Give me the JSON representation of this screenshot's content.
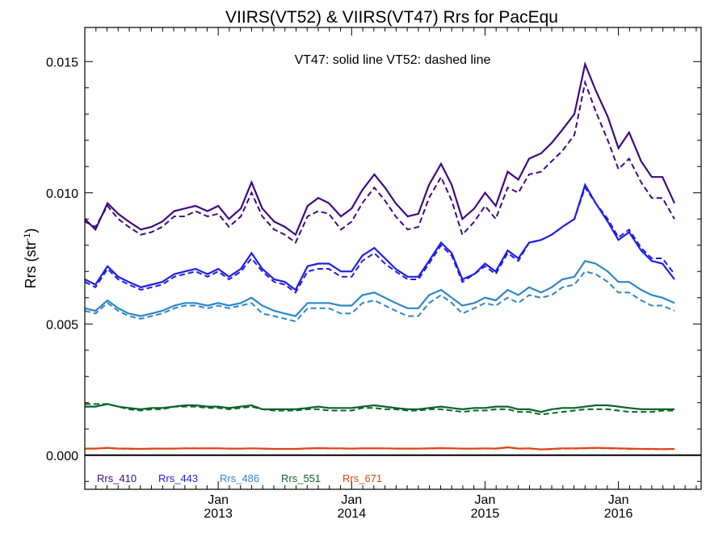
{
  "chart_data": {
    "type": "line",
    "title": "VIIRS(VT52) & VIIRS(VT47)  Rrs for PacEqu",
    "annotation": "VT47: solid line   VT52: dashed line",
    "ylabel_main": "Rrs (str",
    "ylabel_sup": "-1",
    "ylabel_close": ")",
    "xlabel": "",
    "ylim": [
      -0.0013,
      0.0163
    ],
    "xlim": [
      2012.0,
      2016.62
    ],
    "yticks": [
      0.0,
      0.005,
      0.01,
      0.015
    ],
    "ytick_labels": [
      "0.000",
      "0.005",
      "0.010",
      "0.015"
    ],
    "xticks": [
      {
        "x": 2013.0,
        "month": "Jan",
        "year": "2013"
      },
      {
        "x": 2014.0,
        "month": "Jan",
        "year": "2014"
      },
      {
        "x": 2015.0,
        "month": "Jan",
        "year": "2015"
      },
      {
        "x": 2016.0,
        "month": "Jan",
        "year": "2016"
      }
    ],
    "zero_line": 0.0,
    "grid": false,
    "legend_position": "bottom-left",
    "line_styles": {
      "VT47": "solid",
      "VT52": "dashed"
    },
    "series": [
      {
        "name": "Rrs_410",
        "color": "#3d0a82",
        "x": [
          2012.0,
          2012.08,
          2012.17,
          2012.25,
          2012.33,
          2012.42,
          2012.5,
          2012.58,
          2012.67,
          2012.75,
          2012.83,
          2012.92,
          2013.0,
          2013.08,
          2013.17,
          2013.25,
          2013.33,
          2013.42,
          2013.5,
          2013.58,
          2013.67,
          2013.75,
          2013.83,
          2013.92,
          2014.0,
          2014.08,
          2014.17,
          2014.25,
          2014.33,
          2014.42,
          2014.5,
          2014.58,
          2014.67,
          2014.75,
          2014.83,
          2014.92,
          2015.0,
          2015.08,
          2015.17,
          2015.25,
          2015.33,
          2015.42,
          2015.5,
          2015.58,
          2015.67,
          2015.75,
          2015.83,
          2015.92,
          2016.0,
          2016.08,
          2016.17,
          2016.25,
          2016.33,
          2016.42,
          2016.5,
          2016.58
        ],
        "vt47": [
          0.009,
          0.0086,
          0.0096,
          0.0092,
          0.0089,
          0.0086,
          0.0087,
          0.0089,
          0.0093,
          0.0094,
          0.0095,
          0.0093,
          0.0095,
          0.009,
          0.0094,
          0.0104,
          0.0094,
          0.0089,
          0.0087,
          0.0084,
          0.0095,
          0.0098,
          0.0096,
          0.0091,
          0.0094,
          0.0101,
          0.0107,
          0.0102,
          0.0096,
          0.0091,
          0.0092,
          0.0103,
          0.0111,
          0.0103,
          0.009,
          0.0094,
          0.01,
          0.0095,
          0.0108,
          0.0105,
          0.0113,
          0.0115,
          0.0119,
          0.0124,
          0.013,
          0.0149,
          0.0139,
          0.0129,
          0.0117,
          0.0123,
          0.0112,
          0.0106,
          0.0106,
          0.0096
        ],
        "vt52": [
          0.0089,
          0.0087,
          0.0095,
          0.009,
          0.0087,
          0.0084,
          0.0085,
          0.0087,
          0.0091,
          0.0091,
          0.0093,
          0.0091,
          0.0092,
          0.0087,
          0.0091,
          0.01,
          0.0091,
          0.0086,
          0.0084,
          0.0081,
          0.0091,
          0.0093,
          0.0092,
          0.0086,
          0.0089,
          0.0096,
          0.0102,
          0.0097,
          0.0091,
          0.0086,
          0.0087,
          0.0098,
          0.0106,
          0.0097,
          0.0084,
          0.0089,
          0.0095,
          0.009,
          0.0102,
          0.01,
          0.0107,
          0.0108,
          0.0112,
          0.0116,
          0.0122,
          0.0142,
          0.0131,
          0.012,
          0.0109,
          0.0113,
          0.0104,
          0.0098,
          0.0098,
          0.009
        ]
      },
      {
        "name": "Rrs_443",
        "color": "#1e1ee6",
        "x": [
          2012.0,
          2012.08,
          2012.17,
          2012.25,
          2012.33,
          2012.42,
          2012.5,
          2012.58,
          2012.67,
          2012.75,
          2012.83,
          2012.92,
          2013.0,
          2013.08,
          2013.17,
          2013.25,
          2013.33,
          2013.42,
          2013.5,
          2013.58,
          2013.67,
          2013.75,
          2013.83,
          2013.92,
          2014.0,
          2014.08,
          2014.17,
          2014.25,
          2014.33,
          2014.42,
          2014.5,
          2014.58,
          2014.67,
          2014.75,
          2014.83,
          2014.92,
          2015.0,
          2015.08,
          2015.17,
          2015.25,
          2015.33,
          2015.42,
          2015.5,
          2015.58,
          2015.67,
          2015.75,
          2015.83,
          2015.92,
          2016.0,
          2016.08,
          2016.17,
          2016.25,
          2016.33,
          2016.42,
          2016.5,
          2016.58
        ],
        "vt47": [
          0.0067,
          0.0065,
          0.0072,
          0.0068,
          0.0066,
          0.0064,
          0.0065,
          0.0066,
          0.0069,
          0.007,
          0.0071,
          0.0069,
          0.0071,
          0.0068,
          0.0071,
          0.0077,
          0.0071,
          0.0067,
          0.0066,
          0.0063,
          0.0072,
          0.0073,
          0.0073,
          0.007,
          0.007,
          0.0076,
          0.0079,
          0.0075,
          0.0071,
          0.0068,
          0.0068,
          0.0074,
          0.0081,
          0.0077,
          0.0067,
          0.0069,
          0.0073,
          0.007,
          0.0078,
          0.0075,
          0.0081,
          0.0082,
          0.0084,
          0.0087,
          0.009,
          0.0103,
          0.0096,
          0.0089,
          0.0082,
          0.0085,
          0.0078,
          0.0074,
          0.0073,
          0.0067
        ],
        "vt52": [
          0.0066,
          0.0064,
          0.0071,
          0.0067,
          0.0065,
          0.0063,
          0.0064,
          0.0065,
          0.0068,
          0.0069,
          0.007,
          0.0068,
          0.007,
          0.0067,
          0.007,
          0.0075,
          0.007,
          0.0066,
          0.0065,
          0.0062,
          0.007,
          0.0071,
          0.0071,
          0.0068,
          0.0068,
          0.0074,
          0.0077,
          0.0073,
          0.007,
          0.0067,
          0.0067,
          0.0073,
          0.008,
          0.0076,
          0.0066,
          0.0069,
          0.0072,
          0.0069,
          0.0077,
          0.0074,
          0.0081,
          0.0082,
          0.0084,
          0.0087,
          0.009,
          0.0102,
          0.0096,
          0.009,
          0.0083,
          0.0086,
          0.0079,
          0.0075,
          0.0075,
          0.0069
        ]
      },
      {
        "name": "Rrs_486",
        "color": "#2e86c8",
        "x": [
          2012.0,
          2012.08,
          2012.17,
          2012.25,
          2012.33,
          2012.42,
          2012.5,
          2012.58,
          2012.67,
          2012.75,
          2012.83,
          2012.92,
          2013.0,
          2013.08,
          2013.17,
          2013.25,
          2013.33,
          2013.42,
          2013.5,
          2013.58,
          2013.67,
          2013.75,
          2013.83,
          2013.92,
          2014.0,
          2014.08,
          2014.17,
          2014.25,
          2014.33,
          2014.42,
          2014.5,
          2014.58,
          2014.67,
          2014.75,
          2014.83,
          2014.92,
          2015.0,
          2015.08,
          2015.17,
          2015.25,
          2015.33,
          2015.42,
          2015.5,
          2015.58,
          2015.67,
          2015.75,
          2015.83,
          2015.92,
          2016.0,
          2016.08,
          2016.17,
          2016.25,
          2016.33,
          2016.42,
          2016.5,
          2016.58
        ],
        "vt47": [
          0.0056,
          0.0055,
          0.0059,
          0.0056,
          0.0054,
          0.0053,
          0.0054,
          0.0055,
          0.0057,
          0.0058,
          0.0058,
          0.0057,
          0.0058,
          0.0057,
          0.0058,
          0.006,
          0.0057,
          0.0055,
          0.0054,
          0.0053,
          0.0058,
          0.0058,
          0.0058,
          0.0057,
          0.0057,
          0.0061,
          0.0062,
          0.006,
          0.0058,
          0.0056,
          0.0056,
          0.0061,
          0.0063,
          0.006,
          0.0057,
          0.0058,
          0.006,
          0.0059,
          0.0063,
          0.0061,
          0.0064,
          0.0062,
          0.0064,
          0.0067,
          0.0068,
          0.0074,
          0.0073,
          0.007,
          0.0066,
          0.0066,
          0.0063,
          0.0061,
          0.006,
          0.0058
        ],
        "vt52": [
          0.0055,
          0.0054,
          0.0058,
          0.0055,
          0.0053,
          0.0052,
          0.0053,
          0.0054,
          0.0056,
          0.0057,
          0.0057,
          0.0056,
          0.0057,
          0.0056,
          0.0057,
          0.0058,
          0.0054,
          0.0053,
          0.0052,
          0.0051,
          0.0056,
          0.0056,
          0.0056,
          0.0054,
          0.0054,
          0.0058,
          0.0059,
          0.0057,
          0.0055,
          0.0053,
          0.0053,
          0.0058,
          0.0061,
          0.0058,
          0.0054,
          0.0056,
          0.0058,
          0.0057,
          0.006,
          0.0058,
          0.0061,
          0.006,
          0.0061,
          0.0064,
          0.0065,
          0.007,
          0.0069,
          0.0066,
          0.0062,
          0.0062,
          0.0059,
          0.0057,
          0.0057,
          0.0055
        ]
      },
      {
        "name": "Rrs_551",
        "color": "#0a6428",
        "x": [
          2012.0,
          2012.08,
          2012.17,
          2012.25,
          2012.33,
          2012.42,
          2012.5,
          2012.58,
          2012.67,
          2012.75,
          2012.83,
          2012.92,
          2013.0,
          2013.08,
          2013.17,
          2013.25,
          2013.33,
          2013.42,
          2013.5,
          2013.58,
          2013.67,
          2013.75,
          2013.83,
          2013.92,
          2014.0,
          2014.08,
          2014.17,
          2014.25,
          2014.33,
          2014.42,
          2014.5,
          2014.58,
          2014.67,
          2014.75,
          2014.83,
          2014.92,
          2015.0,
          2015.08,
          2015.17,
          2015.25,
          2015.33,
          2015.42,
          2015.5,
          2015.58,
          2015.67,
          2015.75,
          2015.83,
          2015.92,
          2016.0,
          2016.08,
          2016.17,
          2016.25,
          2016.33,
          2016.42,
          2016.5,
          2016.58
        ],
        "vt47": [
          0.00185,
          0.00185,
          0.00195,
          0.00185,
          0.0018,
          0.00175,
          0.0018,
          0.0018,
          0.00185,
          0.0019,
          0.0019,
          0.00185,
          0.00185,
          0.0018,
          0.00185,
          0.0019,
          0.00175,
          0.00175,
          0.00175,
          0.00175,
          0.0018,
          0.00185,
          0.0018,
          0.0018,
          0.0018,
          0.00185,
          0.0019,
          0.00185,
          0.0018,
          0.00175,
          0.00175,
          0.0018,
          0.00185,
          0.0018,
          0.00175,
          0.0018,
          0.0018,
          0.00185,
          0.00185,
          0.00175,
          0.00175,
          0.00165,
          0.00175,
          0.0018,
          0.0018,
          0.00185,
          0.0019,
          0.0019,
          0.00185,
          0.0018,
          0.00175,
          0.00175,
          0.00175,
          0.00175
        ],
        "vt52": [
          0.00195,
          0.00195,
          0.00195,
          0.00185,
          0.00175,
          0.0017,
          0.00175,
          0.00175,
          0.00185,
          0.00185,
          0.00185,
          0.0018,
          0.0018,
          0.00175,
          0.0018,
          0.00185,
          0.00175,
          0.0017,
          0.0017,
          0.0017,
          0.00175,
          0.00175,
          0.0017,
          0.0017,
          0.0017,
          0.0018,
          0.0018,
          0.00175,
          0.00175,
          0.0017,
          0.0017,
          0.00175,
          0.00175,
          0.0017,
          0.00165,
          0.0017,
          0.0017,
          0.00175,
          0.00175,
          0.00165,
          0.00165,
          0.00155,
          0.0016,
          0.00165,
          0.0017,
          0.00175,
          0.00175,
          0.00175,
          0.0017,
          0.00165,
          0.00165,
          0.00165,
          0.0017,
          0.0017
        ]
      },
      {
        "name": "Rrs_671",
        "color": "#dc4614",
        "x": [
          2012.0,
          2012.08,
          2012.17,
          2012.25,
          2012.33,
          2012.42,
          2012.5,
          2012.58,
          2012.67,
          2012.75,
          2012.83,
          2012.92,
          2013.0,
          2013.08,
          2013.17,
          2013.25,
          2013.33,
          2013.42,
          2013.5,
          2013.58,
          2013.67,
          2013.75,
          2013.83,
          2013.92,
          2014.0,
          2014.08,
          2014.17,
          2014.25,
          2014.33,
          2014.42,
          2014.5,
          2014.58,
          2014.67,
          2014.75,
          2014.83,
          2014.92,
          2015.0,
          2015.08,
          2015.17,
          2015.25,
          2015.33,
          2015.42,
          2015.5,
          2015.58,
          2015.67,
          2015.75,
          2015.83,
          2015.92,
          2016.0,
          2016.08,
          2016.17,
          2016.25,
          2016.33,
          2016.42,
          2016.5,
          2016.58
        ],
        "vt47": [
          0.00025,
          0.00025,
          0.00028,
          0.00025,
          0.00025,
          0.00024,
          0.00025,
          0.00025,
          0.00025,
          0.00026,
          0.00026,
          0.00026,
          0.00026,
          0.00025,
          0.00025,
          0.00026,
          0.00025,
          0.00024,
          0.00024,
          0.00024,
          0.00026,
          0.00027,
          0.00026,
          0.00026,
          0.00025,
          0.00026,
          0.00026,
          0.00026,
          0.00025,
          0.00025,
          0.00025,
          0.00026,
          0.00027,
          0.00026,
          0.00025,
          0.00025,
          0.00026,
          0.00025,
          0.0003,
          0.00025,
          0.00026,
          0.00022,
          0.00024,
          0.00026,
          0.00026,
          0.00027,
          0.00028,
          0.00027,
          0.00026,
          0.00025,
          0.00024,
          0.00024,
          0.00023,
          0.00024
        ],
        "vt52": [
          0.00025,
          0.00025,
          0.00027,
          0.00025,
          0.00024,
          0.00024,
          0.00025,
          0.00025,
          0.00025,
          0.00026,
          0.00026,
          0.00026,
          0.00026,
          0.00025,
          0.00025,
          0.00026,
          0.00025,
          0.00024,
          0.00024,
          0.00024,
          0.00025,
          0.00026,
          0.00026,
          0.00025,
          0.00025,
          0.00026,
          0.00026,
          0.00026,
          0.00025,
          0.00025,
          0.00025,
          0.00025,
          0.00026,
          0.00026,
          0.00025,
          0.00025,
          0.00025,
          0.00025,
          0.00029,
          0.00025,
          0.00025,
          0.00022,
          0.00023,
          0.00025,
          0.00025,
          0.00026,
          0.00027,
          0.00026,
          0.00025,
          0.00024,
          0.00024,
          0.00023,
          0.00023,
          0.00024
        ]
      }
    ]
  }
}
